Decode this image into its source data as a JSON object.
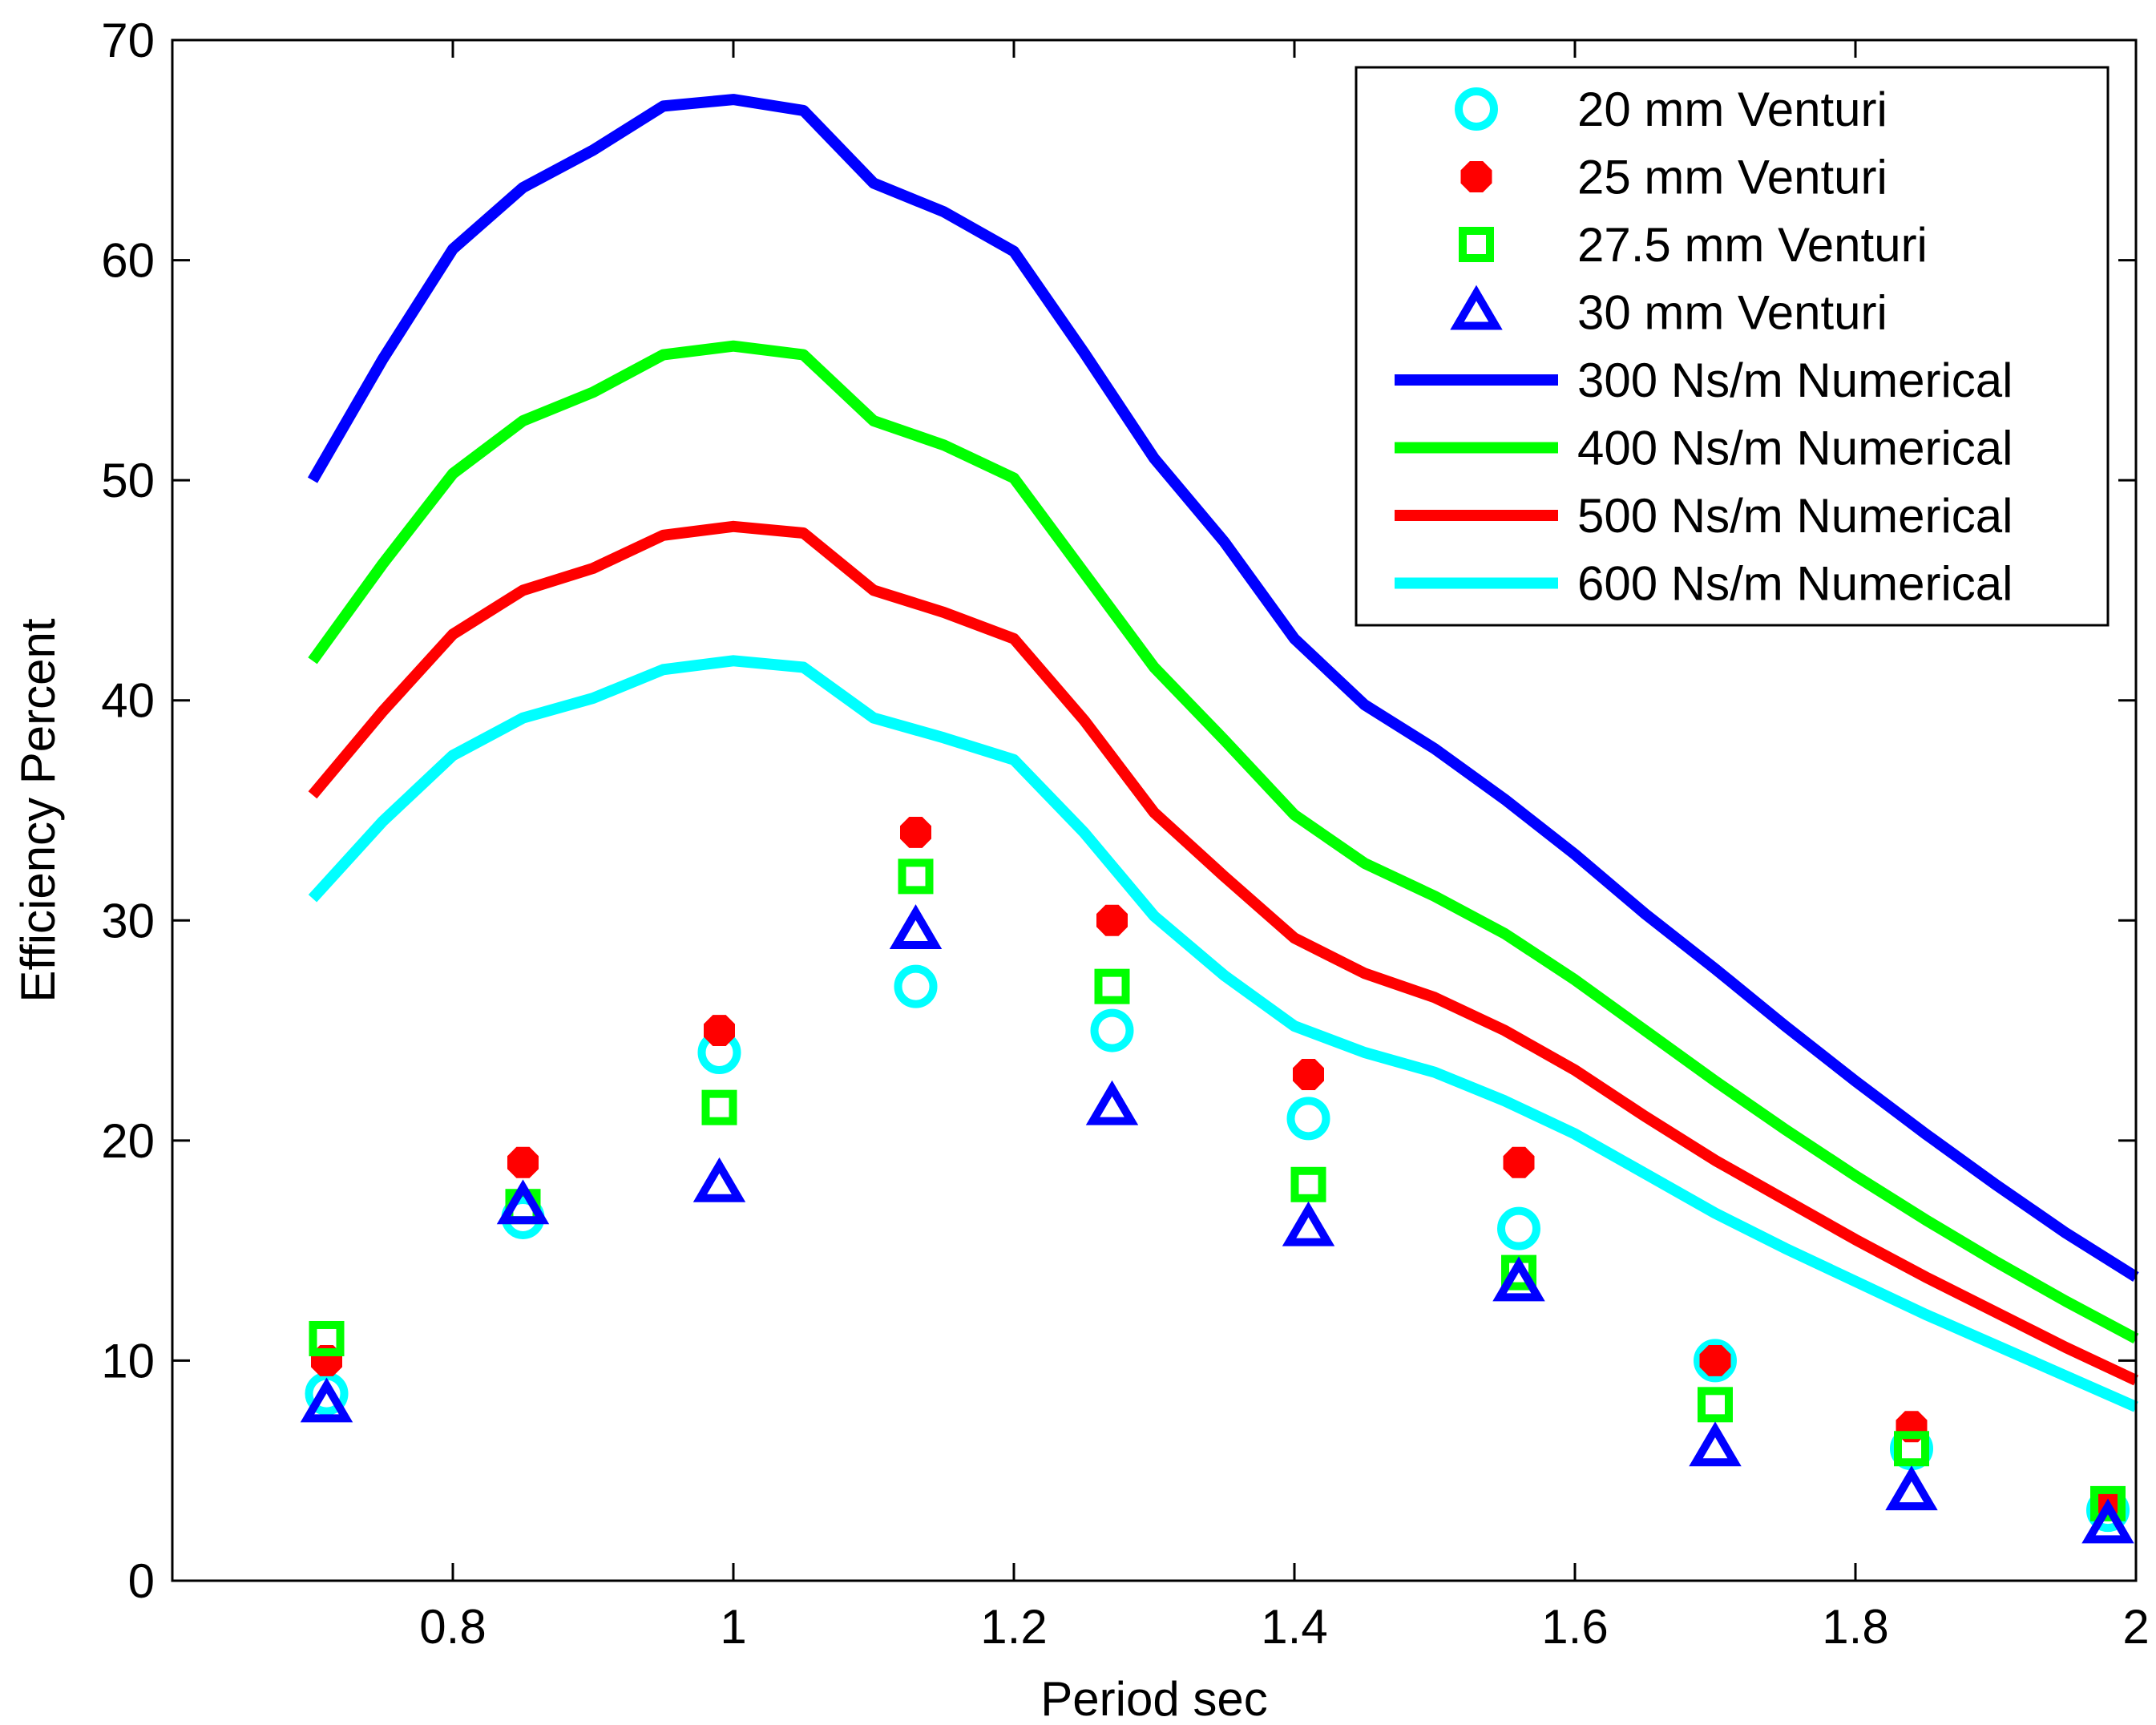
{
  "chart_data": {
    "type": "line",
    "title": "",
    "xlabel": "Period sec",
    "ylabel": "Efficiency Percent",
    "xlim": [
      0.6,
      2.0
    ],
    "ylim": [
      0,
      70
    ],
    "xticks": [
      0.8,
      1.0,
      1.2,
      1.4,
      1.6,
      1.8,
      2.0
    ],
    "xtick_labels": [
      "0.8",
      "1",
      "1.2",
      "1.4",
      "1.6",
      "1.8",
      "2"
    ],
    "yticks": [
      0,
      10,
      20,
      30,
      40,
      50,
      60,
      70
    ],
    "ytick_labels": [
      "0",
      "10",
      "20",
      "30",
      "40",
      "50",
      "60",
      "70"
    ],
    "grid": false,
    "legend_position": "top-right",
    "series": [
      {
        "name": "20 mm Venturi",
        "kind": "scatter",
        "marker": "circle-open",
        "color": "#00ffff",
        "x": [
          0.71,
          0.85,
          0.99,
          1.13,
          1.27,
          1.41,
          1.56,
          1.7,
          1.84,
          1.98
        ],
        "values": [
          8.5,
          16.5,
          24,
          27,
          25,
          21,
          16,
          10,
          6,
          3.2
        ]
      },
      {
        "name": "25 mm Venturi",
        "kind": "scatter",
        "marker": "circle-filled",
        "color": "#ff0000",
        "x": [
          0.71,
          0.85,
          0.99,
          1.13,
          1.27,
          1.41,
          1.56,
          1.7,
          1.84,
          1.98
        ],
        "values": [
          10,
          19,
          25,
          34,
          30,
          23,
          19,
          10,
          7,
          3.5
        ]
      },
      {
        "name": "27.5 mm Venturi",
        "kind": "scatter",
        "marker": "square-open",
        "color": "#00ff00",
        "x": [
          0.71,
          0.85,
          0.99,
          1.13,
          1.27,
          1.41,
          1.56,
          1.7,
          1.84,
          1.98
        ],
        "values": [
          11,
          17,
          21.5,
          32,
          27,
          18,
          14,
          8,
          6,
          3.5
        ]
      },
      {
        "name": "30 mm Venturi",
        "kind": "scatter",
        "marker": "triangle-open",
        "color": "#0000ff",
        "x": [
          0.71,
          0.85,
          0.99,
          1.13,
          1.27,
          1.41,
          1.56,
          1.7,
          1.84,
          1.98
        ],
        "values": [
          8,
          17,
          18,
          29.5,
          21.5,
          16,
          13.5,
          6,
          4,
          2.5
        ]
      },
      {
        "name": "300 Ns/m Numerical",
        "kind": "line",
        "color": "#0000ff",
        "x": [
          0.7,
          0.75,
          0.8,
          0.85,
          0.9,
          0.95,
          1.0,
          1.05,
          1.1,
          1.15,
          1.2,
          1.25,
          1.3,
          1.35,
          1.4,
          1.45,
          1.5,
          1.55,
          1.6,
          1.65,
          1.7,
          1.75,
          1.8,
          1.85,
          1.9,
          1.95,
          2.0
        ],
        "values": [
          50,
          55.5,
          60.5,
          63.3,
          65,
          67,
          67.3,
          66.8,
          63.5,
          62.2,
          60.4,
          55.8,
          51,
          47.2,
          42.8,
          39.8,
          37.8,
          35.5,
          33,
          30.3,
          27.8,
          25.2,
          22.7,
          20.3,
          18.0,
          15.8,
          13.8
        ]
      },
      {
        "name": "400 Ns/m Numerical",
        "kind": "line",
        "color": "#00ff00",
        "x": [
          0.7,
          0.75,
          0.8,
          0.85,
          0.9,
          0.95,
          1.0,
          1.05,
          1.1,
          1.15,
          1.2,
          1.25,
          1.3,
          1.35,
          1.4,
          1.45,
          1.5,
          1.55,
          1.6,
          1.65,
          1.7,
          1.75,
          1.8,
          1.85,
          1.9,
          1.95,
          2.0
        ],
        "values": [
          41.8,
          46.2,
          50.3,
          52.7,
          54,
          55.7,
          56.1,
          55.7,
          52.7,
          51.6,
          50.1,
          45.8,
          41.5,
          38.2,
          34.8,
          32.6,
          31.1,
          29.4,
          27.3,
          25,
          22.7,
          20.5,
          18.4,
          16.4,
          14.5,
          12.7,
          11
        ]
      },
      {
        "name": "500 Ns/m Numerical",
        "kind": "line",
        "color": "#ff0000",
        "x": [
          0.7,
          0.75,
          0.8,
          0.85,
          0.9,
          0.95,
          1.0,
          1.05,
          1.1,
          1.15,
          1.2,
          1.25,
          1.3,
          1.35,
          1.4,
          1.45,
          1.5,
          1.55,
          1.6,
          1.65,
          1.7,
          1.75,
          1.8,
          1.85,
          1.9,
          1.95,
          2.0
        ],
        "values": [
          35.7,
          39.5,
          43,
          45,
          46,
          47.5,
          47.9,
          47.6,
          45,
          44,
          42.8,
          39.1,
          34.9,
          32,
          29.2,
          27.6,
          26.5,
          25,
          23.2,
          21.1,
          19.1,
          17.3,
          15.5,
          13.8,
          12.2,
          10.6,
          9.1
        ]
      },
      {
        "name": "600 Ns/m Numerical",
        "kind": "line",
        "color": "#00ffff",
        "x": [
          0.7,
          0.75,
          0.8,
          0.85,
          0.9,
          0.95,
          1.0,
          1.05,
          1.1,
          1.15,
          1.2,
          1.25,
          1.3,
          1.35,
          1.4,
          1.45,
          1.5,
          1.55,
          1.6,
          1.65,
          1.7,
          1.75,
          1.8,
          1.85,
          1.9,
          1.95,
          2.0
        ],
        "values": [
          31,
          34.5,
          37.5,
          39.2,
          40.1,
          41.4,
          41.8,
          41.5,
          39.2,
          38.3,
          37.3,
          34,
          30.2,
          27.5,
          25.2,
          24,
          23.1,
          21.8,
          20.3,
          18.5,
          16.7,
          15.1,
          13.6,
          12.1,
          10.7,
          9.3,
          7.9
        ]
      }
    ]
  }
}
